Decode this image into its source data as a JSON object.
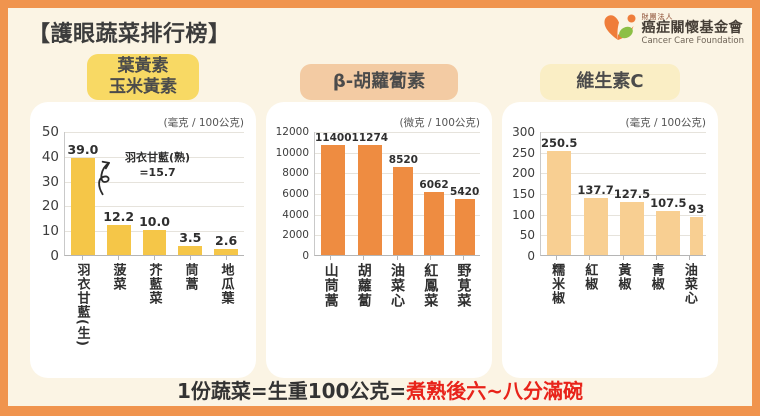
{
  "page": {
    "title": "【護眼蔬菜排行榜】",
    "footer": {
      "normal": "1份蔬菜=生重100公克=",
      "highlight": "煮熟後六~八分滿碗"
    },
    "colors": {
      "frame_border": "#f0944e",
      "background": "#fbf4e4",
      "panel": "#ffffff",
      "footer_highlight": "#e8231a"
    }
  },
  "logo": {
    "org_type": "財團法人",
    "org_name": "癌症關懷基金會",
    "org_name_en": "Cancer Care Foundation",
    "mark_colors": {
      "orange": "#ef7d3a",
      "green": "#8cbf45"
    }
  },
  "chart_data": [
    {
      "type": "bar",
      "title": "葉黃素\n玉米黃素",
      "unit": "(毫克 / 100公克)",
      "categories": [
        "羽衣甘藍(生)",
        "菠菜",
        "芥藍菜",
        "茼蒿",
        "地瓜葉"
      ],
      "values": [
        39.0,
        12.2,
        10.0,
        3.5,
        2.6
      ],
      "value_labels": [
        "39.0",
        "12.2",
        "10.0",
        "3.5",
        "2.6"
      ],
      "ylim": [
        0,
        50
      ],
      "yticks": [
        0,
        10,
        20,
        30,
        40,
        50
      ],
      "bar_color": "#f5c648",
      "header_bg": "#f8d964",
      "grid": true,
      "annotation": "羽衣甘藍(熟)\n=15.7"
    },
    {
      "type": "bar",
      "title": "β-胡蘿蔔素",
      "unit": "(微克 / 100公克)",
      "categories": [
        "山茼蒿",
        "胡蘿蔔",
        "油菜心",
        "紅鳳菜",
        "野莧菜"
      ],
      "values": [
        11400,
        11274,
        8520,
        6062,
        5420
      ],
      "value_labels": [
        "11400",
        "11274",
        "8520",
        "6062",
        "5420"
      ],
      "ylim": [
        0,
        12000
      ],
      "yticks": [
        0,
        2000,
        4000,
        6000,
        8000,
        10000,
        12000
      ],
      "bar_color": "#ee8c41",
      "header_bg": "#f3cba3",
      "grid": true
    },
    {
      "type": "bar",
      "title": "維生素C",
      "unit": "(毫克 / 100公克)",
      "categories": [
        "糯米椒",
        "紅椒",
        "黃椒",
        "青椒",
        "油菜心"
      ],
      "values": [
        250.5,
        137.7,
        127.5,
        107.5,
        93
      ],
      "value_labels": [
        "250.5",
        "137.7",
        "127.5",
        "107.5",
        "93"
      ],
      "ylim": [
        0,
        300
      ],
      "yticks": [
        0,
        50,
        100,
        150,
        200,
        250,
        300
      ],
      "bar_color": "#f8cf92",
      "header_bg": "#faeec5",
      "grid": true
    }
  ]
}
